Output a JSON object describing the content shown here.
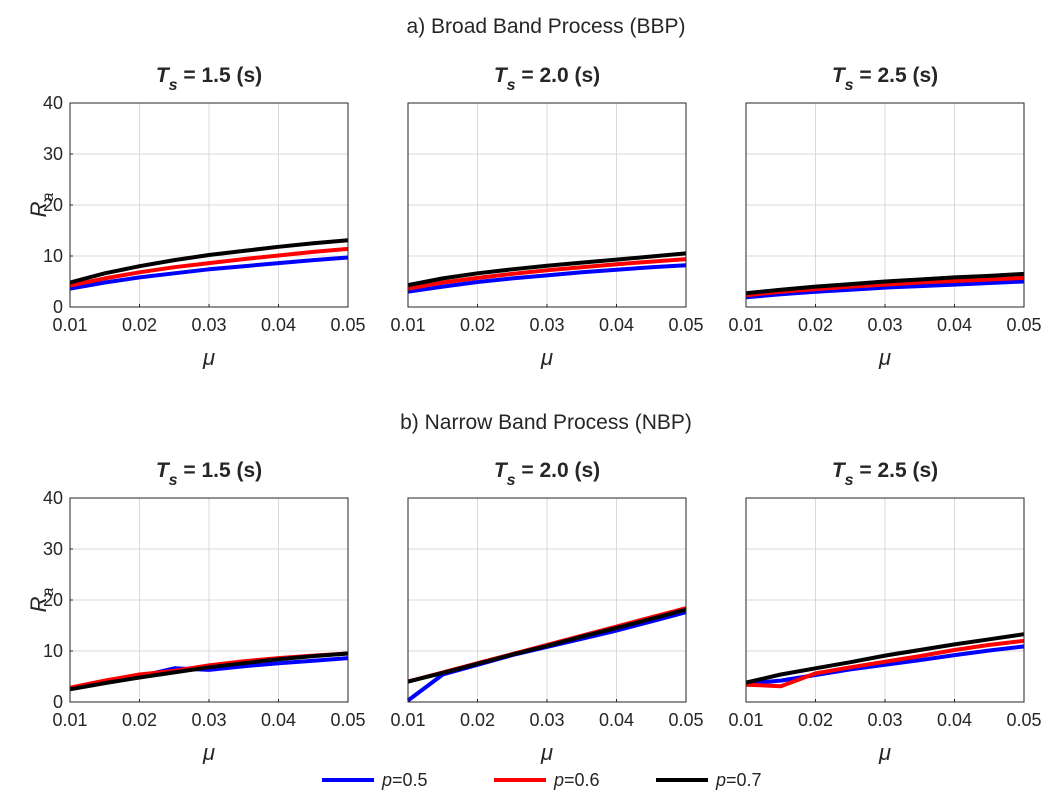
{
  "figure": {
    "sections": [
      {
        "title": "a) Broad Band Process (BBP)"
      },
      {
        "title": "b) Narrow Band Process (NBP)"
      }
    ],
    "panel_titles": [
      {
        "var": "T",
        "sub": "s",
        "rest": " = 1.5 (s)"
      },
      {
        "var": "T",
        "sub": "s",
        "rest": " = 2.0 (s)"
      },
      {
        "var": "T",
        "sub": "s",
        "rest": " = 2.5 (s)"
      }
    ],
    "ylabel": {
      "main": "R",
      "sub": "a"
    },
    "xlabel": "μ",
    "legend": [
      {
        "name": "p=0.5",
        "var": "p",
        "rest": "=0.5",
        "color": "#0000ff"
      },
      {
        "name": "p=0.6",
        "var": "p",
        "rest": "=0.6",
        "color": "#ff0000"
      },
      {
        "name": "p=0.7",
        "var": "p",
        "rest": "=0.7",
        "color": "#000000"
      }
    ]
  },
  "chart_data": [
    {
      "type": "line",
      "section": "a) Broad Band Process (BBP)",
      "title": "Ts = 1.5 (s)",
      "xlabel": "μ",
      "ylabel": "Ra",
      "xlim": [
        0.01,
        0.05
      ],
      "ylim": [
        0,
        40
      ],
      "xticks": [
        "0.01",
        "0.02",
        "0.03",
        "0.04",
        "0.05"
      ],
      "yticks": [
        "0",
        "10",
        "20",
        "30",
        "40"
      ],
      "grid": true,
      "series": [
        {
          "name": "p=0.5",
          "color": "#0000ff",
          "x": [
            0.01,
            0.015,
            0.02,
            0.025,
            0.03,
            0.035,
            0.04,
            0.045,
            0.05
          ],
          "y": [
            3.6,
            4.8,
            5.8,
            6.6,
            7.4,
            8.0,
            8.6,
            9.2,
            9.7
          ]
        },
        {
          "name": "p=0.6",
          "color": "#ff0000",
          "x": [
            0.01,
            0.015,
            0.02,
            0.025,
            0.03,
            0.035,
            0.04,
            0.045,
            0.05
          ],
          "y": [
            4.2,
            5.6,
            6.8,
            7.8,
            8.6,
            9.4,
            10.1,
            10.8,
            11.4
          ]
        },
        {
          "name": "p=0.7",
          "color": "#000000",
          "x": [
            0.01,
            0.015,
            0.02,
            0.025,
            0.03,
            0.035,
            0.04,
            0.045,
            0.05
          ],
          "y": [
            4.8,
            6.6,
            8.0,
            9.2,
            10.2,
            11.0,
            11.8,
            12.5,
            13.1
          ]
        }
      ]
    },
    {
      "type": "line",
      "section": "a) Broad Band Process (BBP)",
      "title": "Ts = 2.0 (s)",
      "xlabel": "μ",
      "ylabel": "Ra",
      "xlim": [
        0.01,
        0.05
      ],
      "ylim": [
        0,
        40
      ],
      "xticks": [
        "0.01",
        "0.02",
        "0.03",
        "0.04",
        "0.05"
      ],
      "yticks": [],
      "grid": true,
      "series": [
        {
          "name": "p=0.5",
          "color": "#0000ff",
          "x": [
            0.01,
            0.015,
            0.02,
            0.025,
            0.03,
            0.035,
            0.04,
            0.045,
            0.05
          ],
          "y": [
            3.0,
            4.0,
            4.9,
            5.6,
            6.2,
            6.8,
            7.3,
            7.8,
            8.2
          ]
        },
        {
          "name": "p=0.6",
          "color": "#ff0000",
          "x": [
            0.01,
            0.015,
            0.02,
            0.025,
            0.03,
            0.035,
            0.04,
            0.045,
            0.05
          ],
          "y": [
            3.6,
            4.8,
            5.7,
            6.5,
            7.2,
            7.8,
            8.4,
            8.9,
            9.4
          ]
        },
        {
          "name": "p=0.7",
          "color": "#000000",
          "x": [
            0.01,
            0.015,
            0.02,
            0.025,
            0.03,
            0.035,
            0.04,
            0.045,
            0.05
          ],
          "y": [
            4.3,
            5.6,
            6.6,
            7.4,
            8.1,
            8.7,
            9.3,
            9.9,
            10.5
          ]
        }
      ]
    },
    {
      "type": "line",
      "section": "a) Broad Band Process (BBP)",
      "title": "Ts = 2.5 (s)",
      "xlabel": "μ",
      "ylabel": "Ra",
      "xlim": [
        0.01,
        0.05
      ],
      "ylim": [
        0,
        40
      ],
      "xticks": [
        "0.01",
        "0.02",
        "0.03",
        "0.04",
        "0.05"
      ],
      "yticks": [],
      "grid": true,
      "series": [
        {
          "name": "p=0.5",
          "color": "#0000ff",
          "x": [
            0.01,
            0.015,
            0.02,
            0.025,
            0.03,
            0.035,
            0.04,
            0.045,
            0.05
          ],
          "y": [
            1.9,
            2.5,
            3.0,
            3.4,
            3.8,
            4.1,
            4.4,
            4.7,
            5.0
          ]
        },
        {
          "name": "p=0.6",
          "color": "#ff0000",
          "x": [
            0.01,
            0.015,
            0.02,
            0.025,
            0.03,
            0.035,
            0.04,
            0.045,
            0.05
          ],
          "y": [
            2.3,
            3.0,
            3.5,
            4.0,
            4.4,
            4.8,
            5.1,
            5.4,
            5.7
          ]
        },
        {
          "name": "p=0.7",
          "color": "#000000",
          "x": [
            0.01,
            0.015,
            0.02,
            0.025,
            0.03,
            0.035,
            0.04,
            0.045,
            0.05
          ],
          "y": [
            2.7,
            3.4,
            4.0,
            4.5,
            5.0,
            5.4,
            5.8,
            6.1,
            6.5
          ]
        }
      ]
    },
    {
      "type": "line",
      "section": "b) Narrow Band Process (NBP)",
      "title": "Ts = 1.5 (s)",
      "xlabel": "μ",
      "ylabel": "Ra",
      "xlim": [
        0.01,
        0.05
      ],
      "ylim": [
        0,
        40
      ],
      "xticks": [
        "0.01",
        "0.02",
        "0.03",
        "0.04",
        "0.05"
      ],
      "yticks": [
        "0",
        "10",
        "20",
        "30",
        "40"
      ],
      "grid": true,
      "series": [
        {
          "name": "p=0.5",
          "color": "#0000ff",
          "x": [
            0.01,
            0.015,
            0.02,
            0.025,
            0.03,
            0.035,
            0.04,
            0.045,
            0.05
          ],
          "y": [
            2.6,
            3.8,
            5.0,
            6.6,
            6.3,
            7.0,
            7.6,
            8.1,
            8.6
          ]
        },
        {
          "name": "p=0.6",
          "color": "#ff0000",
          "x": [
            0.01,
            0.015,
            0.02,
            0.025,
            0.03,
            0.035,
            0.04,
            0.045,
            0.05
          ],
          "y": [
            2.8,
            4.2,
            5.4,
            6.1,
            7.2,
            8.0,
            8.6,
            9.1,
            9.5
          ]
        },
        {
          "name": "p=0.7",
          "color": "#000000",
          "x": [
            0.01,
            0.015,
            0.02,
            0.025,
            0.03,
            0.035,
            0.04,
            0.045,
            0.05
          ],
          "y": [
            2.5,
            3.7,
            4.8,
            5.8,
            6.8,
            7.6,
            8.4,
            9.0,
            9.5
          ]
        }
      ]
    },
    {
      "type": "line",
      "section": "b) Narrow Band Process (NBP)",
      "title": "Ts = 2.0 (s)",
      "xlabel": "μ",
      "ylabel": "Ra",
      "xlim": [
        0.01,
        0.05
      ],
      "ylim": [
        0,
        40
      ],
      "xticks": [
        "0.01",
        "0.02",
        "0.03",
        "0.04",
        "0.05"
      ],
      "yticks": [],
      "grid": true,
      "series": [
        {
          "name": "p=0.5",
          "color": "#0000ff",
          "x": [
            0.01,
            0.015,
            0.02,
            0.025,
            0.03,
            0.035,
            0.04,
            0.045,
            0.05
          ],
          "y": [
            0.3,
            5.4,
            7.3,
            9.2,
            10.8,
            12.4,
            14.0,
            15.8,
            17.6
          ]
        },
        {
          "name": "p=0.6",
          "color": "#ff0000",
          "x": [
            0.01,
            0.015,
            0.02,
            0.025,
            0.03,
            0.035,
            0.04,
            0.045,
            0.05
          ],
          "y": [
            4.0,
            5.8,
            7.6,
            9.4,
            11.2,
            13.0,
            14.8,
            16.6,
            18.4
          ]
        },
        {
          "name": "p=0.7",
          "color": "#000000",
          "x": [
            0.01,
            0.015,
            0.02,
            0.025,
            0.03,
            0.035,
            0.04,
            0.045,
            0.05
          ],
          "y": [
            4.0,
            5.7,
            7.5,
            9.3,
            11.0,
            12.8,
            14.5,
            16.3,
            18.1
          ]
        }
      ]
    },
    {
      "type": "line",
      "section": "b) Narrow Band Process (NBP)",
      "title": "Ts = 2.5 (s)",
      "xlabel": "μ",
      "ylabel": "Ra",
      "xlim": [
        0.01,
        0.05
      ],
      "ylim": [
        0,
        40
      ],
      "xticks": [
        "0.01",
        "0.02",
        "0.03",
        "0.04",
        "0.05"
      ],
      "yticks": [],
      "grid": true,
      "series": [
        {
          "name": "p=0.5",
          "color": "#0000ff",
          "x": [
            0.01,
            0.015,
            0.02,
            0.025,
            0.03,
            0.035,
            0.04,
            0.045,
            0.05
          ],
          "y": [
            3.6,
            4.2,
            5.3,
            6.4,
            7.3,
            8.2,
            9.2,
            10.1,
            10.9
          ]
        },
        {
          "name": "p=0.6",
          "color": "#ff0000",
          "x": [
            0.01,
            0.015,
            0.02,
            0.025,
            0.03,
            0.035,
            0.04,
            0.045,
            0.05
          ],
          "y": [
            3.4,
            3.1,
            5.6,
            6.8,
            7.9,
            9.0,
            10.2,
            11.2,
            12.0
          ]
        },
        {
          "name": "p=0.7",
          "color": "#000000",
          "x": [
            0.01,
            0.015,
            0.02,
            0.025,
            0.03,
            0.035,
            0.04,
            0.045,
            0.05
          ],
          "y": [
            3.8,
            5.4,
            6.6,
            7.8,
            9.1,
            10.2,
            11.3,
            12.3,
            13.3
          ]
        }
      ]
    }
  ]
}
